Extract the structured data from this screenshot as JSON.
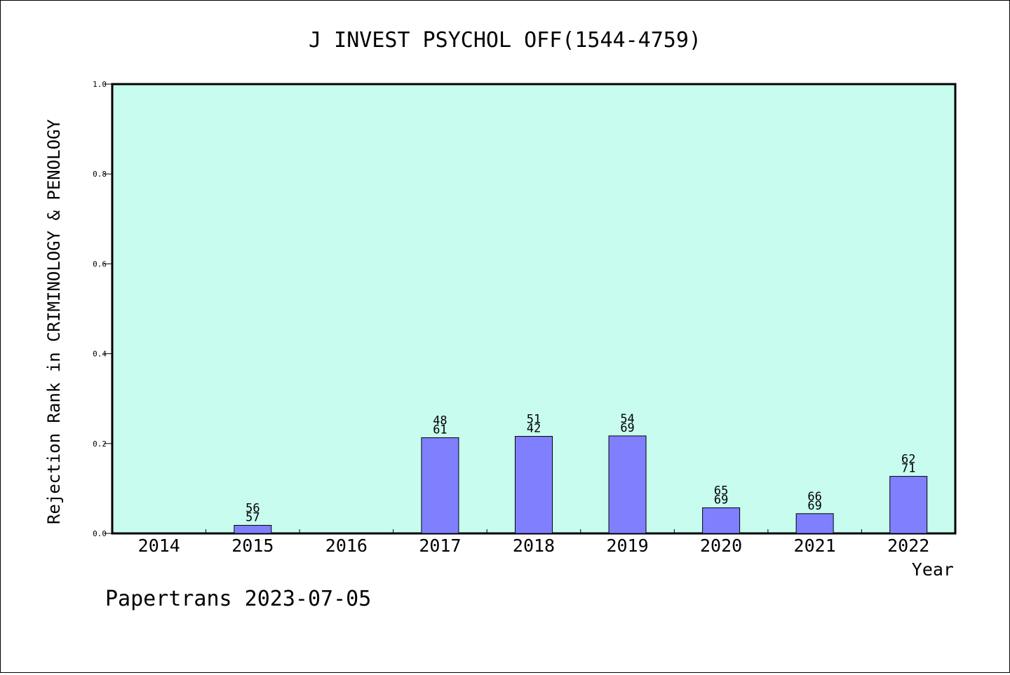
{
  "chart_data": {
    "type": "bar",
    "title": "J INVEST PSYCHOL OFF(1544-4759)",
    "xlabel": "Year",
    "ylabel": "Rejection Rank in CRIMINOLOGY & PENOLOGY",
    "ylim": [
      0,
      1.0
    ],
    "yticks": [
      "0.0",
      "0.2",
      "0.4",
      "0.6",
      "0.8",
      "1.0"
    ],
    "categories": [
      "2014",
      "2015",
      "2016",
      "2017",
      "2018",
      "2019",
      "2020",
      "2021",
      "2022"
    ],
    "values": [
      0,
      0.018,
      0,
      0.213,
      0.216,
      0.217,
      0.057,
      0.044,
      0.127
    ],
    "bar_labels": [
      null,
      [
        "56",
        "57"
      ],
      null,
      [
        "48",
        "61"
      ],
      [
        "51",
        "42"
      ],
      [
        "54",
        "69"
      ],
      [
        "65",
        "69"
      ],
      [
        "66",
        "69"
      ],
      [
        "62",
        "71"
      ]
    ],
    "grid": false,
    "plot_background": "#c8fcef",
    "bar_color": "#8080ff"
  },
  "footer": "Papertrans 2023-07-05"
}
